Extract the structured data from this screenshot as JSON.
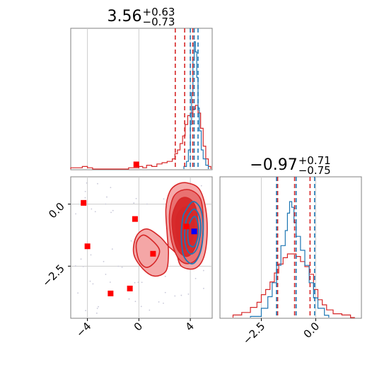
{
  "colors": {
    "red": "#d62728",
    "blue": "#1f77b4",
    "red_marker": "#ff0000",
    "blue_marker": "#0000ff",
    "red_fill_light": "#f4a5a5",
    "red_fill_mid": "#e86e6e",
    "red_fill_dark": "#d62728",
    "grid": "#cccccc",
    "frame": "#808080"
  },
  "chart_data": {
    "type": "corner",
    "panels": [
      {
        "panel": "marginal-x",
        "title": {
          "value": "3.56",
          "plus": "+0.63",
          "minus": "−0.73"
        },
        "xlim": [
          -5.3,
          5.7
        ],
        "grid_x": [
          -4,
          0,
          4
        ],
        "quantiles_red": [
          2.83,
          3.56,
          4.19
        ],
        "quantiles_blue": [
          4.0,
          4.3,
          4.6
        ],
        "hist_red": {
          "bins": [
            [
              -5.3,
              0.01
            ],
            [
              -4.8,
              0.01
            ],
            [
              -4.4,
              0.02
            ],
            [
              -4.0,
              0.01
            ],
            [
              -3.6,
              0.0
            ],
            [
              -0.8,
              0.01
            ],
            [
              0.0,
              0.02
            ],
            [
              0.3,
              0.01
            ],
            [
              0.6,
              0.03
            ],
            [
              1.0,
              0.02
            ],
            [
              1.4,
              0.04
            ],
            [
              1.8,
              0.05
            ],
            [
              2.2,
              0.06
            ],
            [
              2.6,
              0.08
            ],
            [
              2.8,
              0.12
            ],
            [
              3.0,
              0.15
            ],
            [
              3.2,
              0.2
            ],
            [
              3.4,
              0.26
            ],
            [
              3.6,
              0.35
            ],
            [
              3.8,
              0.42
            ],
            [
              4.0,
              0.44
            ],
            [
              4.2,
              0.47
            ],
            [
              4.4,
              0.5
            ],
            [
              4.6,
              0.44
            ],
            [
              4.8,
              0.32
            ],
            [
              5.0,
              0.18
            ],
            [
              5.2,
              0.08
            ],
            [
              5.4,
              0.02
            ]
          ]
        },
        "hist_blue": {
          "bins": [
            [
              3.5,
              0.02
            ],
            [
              3.7,
              0.06
            ],
            [
              3.85,
              0.15
            ],
            [
              4.0,
              0.35
            ],
            [
              4.1,
              0.6
            ],
            [
              4.2,
              0.86
            ],
            [
              4.3,
              1.0
            ],
            [
              4.4,
              0.92
            ],
            [
              4.5,
              0.72
            ],
            [
              4.6,
              0.48
            ],
            [
              4.7,
              0.3
            ],
            [
              4.85,
              0.15
            ],
            [
              5.0,
              0.08
            ],
            [
              5.2,
              0.03
            ]
          ]
        }
      },
      {
        "panel": "marginal-y",
        "title": {
          "value": "−0.97",
          "plus": "+0.71",
          "minus": "−0.75"
        },
        "xlim": [
          -4.4,
          2.1
        ],
        "grid_x": [
          -2.5,
          0.0
        ],
        "quantiles_red": [
          -1.75,
          -0.97,
          -0.26
        ],
        "quantiles_blue": [
          -1.8,
          -0.9,
          -0.05
        ],
        "hist_red": {
          "bins": [
            [
              -3.8,
              0.02
            ],
            [
              -3.4,
              0.04
            ],
            [
              -3.0,
              0.08
            ],
            [
              -2.7,
              0.12
            ],
            [
              -2.5,
              0.18
            ],
            [
              -2.3,
              0.22
            ],
            [
              -2.1,
              0.28
            ],
            [
              -1.9,
              0.35
            ],
            [
              -1.7,
              0.42
            ],
            [
              -1.5,
              0.47
            ],
            [
              -1.3,
              0.5
            ],
            [
              -1.1,
              0.5
            ],
            [
              -0.9,
              0.48
            ],
            [
              -0.7,
              0.44
            ],
            [
              -0.5,
              0.4
            ],
            [
              -0.3,
              0.34
            ],
            [
              -0.1,
              0.22
            ],
            [
              0.1,
              0.14
            ],
            [
              0.3,
              0.1
            ],
            [
              0.5,
              0.06
            ],
            [
              0.8,
              0.03
            ],
            [
              1.2,
              0.02
            ],
            [
              1.6,
              0.0
            ]
          ]
        },
        "hist_blue": {
          "bins": [
            [
              -3.0,
              0.01
            ],
            [
              -2.5,
              0.08
            ],
            [
              -2.2,
              0.18
            ],
            [
              -2.0,
              0.3
            ],
            [
              -1.8,
              0.45
            ],
            [
              -1.6,
              0.62
            ],
            [
              -1.4,
              0.75
            ],
            [
              -1.3,
              0.9
            ],
            [
              -1.2,
              1.0
            ],
            [
              -1.1,
              0.95
            ],
            [
              -1.0,
              0.82
            ],
            [
              -0.9,
              0.7
            ],
            [
              -0.7,
              0.58
            ],
            [
              -0.5,
              0.45
            ],
            [
              -0.3,
              0.3
            ],
            [
              -0.1,
              0.17
            ],
            [
              0.1,
              0.08
            ],
            [
              0.4,
              0.02
            ]
          ]
        }
      },
      {
        "panel": "joint",
        "xlim": [
          -5.3,
          5.7
        ],
        "ylim": [
          -4.6,
          1.1
        ],
        "x_ticks": [
          "−4",
          "0",
          "4"
        ],
        "x_tick_values": [
          -4,
          0,
          4
        ],
        "y_ticks": [
          "0.0",
          "−2.5"
        ],
        "y_tick_values": [
          0.0,
          -2.5
        ],
        "red_markers": [
          [
            -4.3,
            0.05
          ],
          [
            -4.0,
            -1.7
          ],
          [
            -0.2,
            1.6
          ],
          [
            -0.3,
            -0.6
          ],
          [
            1.1,
            -2.0
          ],
          [
            -2.2,
            -3.6
          ],
          [
            -0.7,
            -3.4
          ],
          [
            3.7,
            -0.9
          ]
        ],
        "blue_marker": [
          4.3,
          -1.1
        ],
        "red_contours": [
          [
            [
              2.1,
              -0.2
            ],
            [
              2.4,
              0.5
            ],
            [
              3.0,
              0.8
            ],
            [
              3.8,
              0.85
            ],
            [
              4.7,
              0.6
            ],
            [
              5.2,
              -0.2
            ],
            [
              5.3,
              -1.3
            ],
            [
              5.0,
              -2.2
            ],
            [
              4.3,
              -2.6
            ],
            [
              3.3,
              -2.5
            ],
            [
              2.9,
              -2.0
            ],
            [
              2.3,
              -1.7
            ],
            [
              1.6,
              -1.3
            ],
            [
              0.6,
              -1.0
            ],
            [
              -0.2,
              -1.3
            ],
            [
              -0.4,
              -2.0
            ],
            [
              0.3,
              -2.6
            ],
            [
              1.2,
              -2.9
            ],
            [
              2.1,
              -2.7
            ],
            [
              2.3,
              -2.0
            ],
            [
              2.2,
              -1.2
            ]
          ],
          [
            [
              2.4,
              -0.3
            ],
            [
              2.7,
              0.3
            ],
            [
              3.3,
              0.55
            ],
            [
              4.1,
              0.55
            ],
            [
              4.8,
              0.2
            ],
            [
              5.0,
              -0.6
            ],
            [
              4.9,
              -1.6
            ],
            [
              4.5,
              -2.2
            ],
            [
              3.8,
              -2.4
            ],
            [
              3.1,
              -2.2
            ],
            [
              2.6,
              -1.6
            ],
            [
              2.4,
              -0.9
            ]
          ],
          [
            [
              2.6,
              -0.5
            ],
            [
              3.1,
              0.15
            ],
            [
              3.8,
              0.25
            ],
            [
              4.4,
              -0.1
            ],
            [
              4.6,
              -0.9
            ],
            [
              4.4,
              -1.7
            ],
            [
              3.8,
              -2.1
            ],
            [
              3.1,
              -1.9
            ],
            [
              2.7,
              -1.3
            ]
          ],
          [
            [
              2.9,
              -0.6
            ],
            [
              3.4,
              -0.15
            ],
            [
              4.0,
              -0.2
            ],
            [
              4.3,
              -0.8
            ],
            [
              4.1,
              -1.5
            ],
            [
              3.5,
              -1.8
            ],
            [
              3.0,
              -1.4
            ]
          ],
          [
            [
              -0.2,
              -1.6
            ],
            [
              0.3,
              -1.25
            ],
            [
              1.0,
              -1.45
            ],
            [
              1.6,
              -1.85
            ],
            [
              1.3,
              -2.3
            ],
            [
              0.6,
              -2.55
            ],
            [
              0.0,
              -2.25
            ]
          ]
        ],
        "blue_contours": [
          [
            [
              3.6,
              -0.3
            ],
            [
              4.2,
              0.1
            ],
            [
              4.8,
              -0.2
            ],
            [
              5.0,
              -1.0
            ],
            [
              4.8,
              -1.9
            ],
            [
              4.2,
              -2.4
            ],
            [
              3.5,
              -2.1
            ],
            [
              3.3,
              -1.3
            ],
            [
              3.4,
              -0.6
            ]
          ],
          [
            [
              3.8,
              -0.5
            ],
            [
              4.3,
              -0.2
            ],
            [
              4.7,
              -0.5
            ],
            [
              4.8,
              -1.1
            ],
            [
              4.5,
              -1.8
            ],
            [
              4.0,
              -2.0
            ],
            [
              3.6,
              -1.6
            ],
            [
              3.6,
              -0.9
            ]
          ],
          [
            [
              4.0,
              -0.7
            ],
            [
              4.35,
              -0.5
            ],
            [
              4.6,
              -0.8
            ],
            [
              4.6,
              -1.3
            ],
            [
              4.3,
              -1.7
            ],
            [
              3.9,
              -1.6
            ],
            [
              3.8,
              -1.1
            ]
          ]
        ]
      }
    ]
  }
}
